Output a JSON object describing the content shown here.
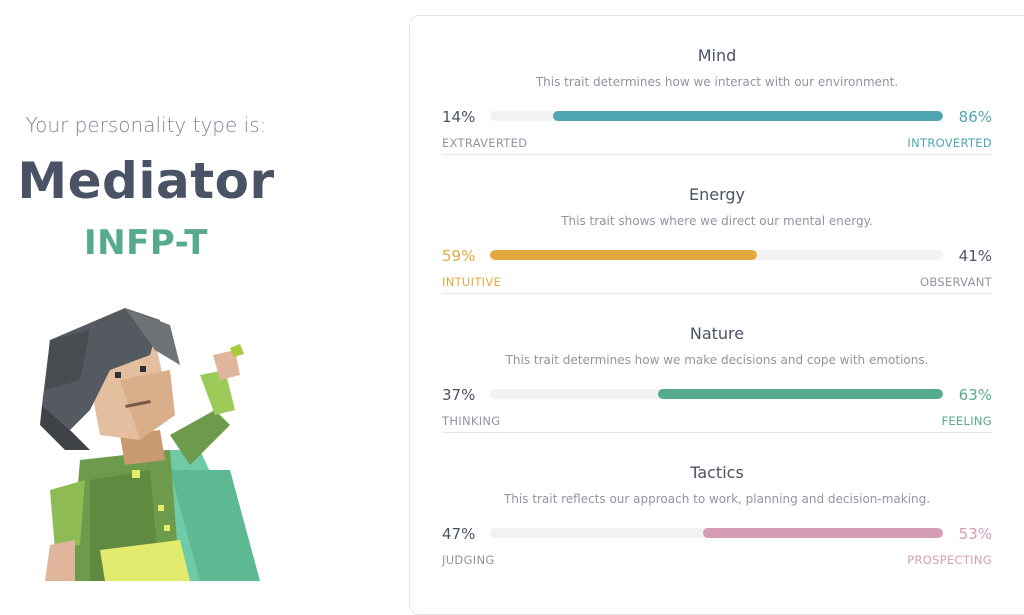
{
  "profile": {
    "subtitle": "Your personality type is:",
    "type_name": "Mediator",
    "type_code": "INFP-T"
  },
  "colors": {
    "mind": "#4fa6b0",
    "energy": "#e3a93d",
    "nature": "#56ab8c",
    "tactics": "#d59db3",
    "neutral_text": "#4a5366",
    "muted_text": "#8f95a1"
  },
  "traits": [
    {
      "title": "Mind",
      "description": "This trait determines how we interact with our environment.",
      "left_percent": "14%",
      "right_percent": "86%",
      "left_label": "EXTRAVERTED",
      "right_label": "INTROVERTED",
      "dominant": "right",
      "fill_fraction": 0.86,
      "color": "#4fa6b0"
    },
    {
      "title": "Energy",
      "description": "This trait shows where we direct our mental energy.",
      "left_percent": "59%",
      "right_percent": "41%",
      "left_label": "INTUITIVE",
      "right_label": "OBSERVANT",
      "dominant": "left",
      "fill_fraction": 0.59,
      "color": "#e3a93d"
    },
    {
      "title": "Nature",
      "description": "This trait determines how we make decisions and cope with emotions.",
      "left_percent": "37%",
      "right_percent": "63%",
      "left_label": "THINKING",
      "right_label": "FEELING",
      "dominant": "right",
      "fill_fraction": 0.63,
      "color": "#56ab8c"
    },
    {
      "title": "Tactics",
      "description": "This trait reflects our approach to work, planning and decision-making.",
      "left_percent": "47%",
      "right_percent": "53%",
      "left_label": "JUDGING",
      "right_label": "PROSPECTING",
      "dominant": "right",
      "fill_fraction": 0.53,
      "color": "#d59db3"
    }
  ]
}
